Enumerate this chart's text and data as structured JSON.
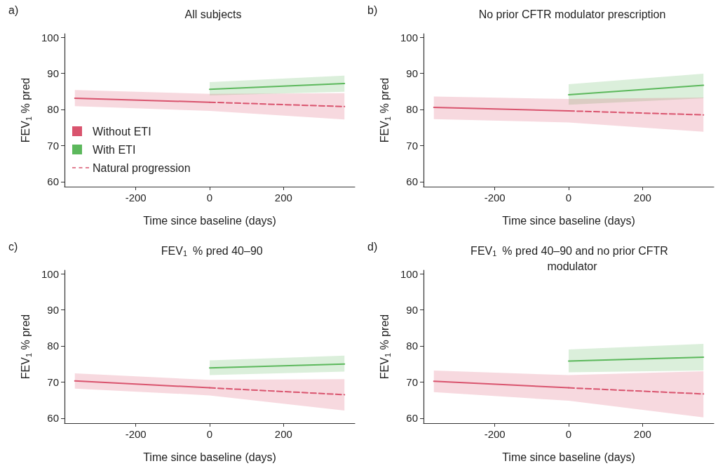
{
  "chart_data": [
    {
      "type": "line",
      "title": "All subjects",
      "annotations": [
        "a)"
      ],
      "xlabel": "Time since baseline (days)",
      "ylabel": "FEV$_{1}$ % pred",
      "xlim": [
        -393,
        393
      ],
      "xticks": [
        -200,
        0,
        200
      ],
      "ylim": [
        58.6,
        101
      ],
      "yticks": [
        60,
        70,
        80,
        90,
        100
      ],
      "grid": false,
      "marker": "none",
      "legend": "bottom left",
      "series": [
        {
          "name": "Without ETI",
          "color": "#d9546e",
          "line_style": "solid",
          "x": [
            -365,
            0
          ],
          "values": [
            83.1,
            82.0
          ],
          "lower": [
            80.9,
            79.6
          ],
          "upper": [
            85.4,
            84.3
          ]
        },
        {
          "name": "With ETI",
          "color": "#5cb85c",
          "line_style": "solid",
          "x": [
            0,
            365
          ],
          "values": [
            85.6,
            87.2
          ],
          "lower": [
            83.9,
            84.9
          ],
          "upper": [
            87.6,
            89.4
          ]
        },
        {
          "name": "Natural progression",
          "color": "#d9546e",
          "line_style": "dashed",
          "x": [
            0,
            365
          ],
          "values": [
            82.0,
            80.8
          ],
          "lower": [
            79.6,
            77.2
          ],
          "upper": [
            84.3,
            84.5
          ]
        }
      ]
    },
    {
      "type": "line",
      "title": "No prior CFTR modulator prescription",
      "annotations": [
        "b)"
      ],
      "xlabel": "Time since baseline (days)",
      "ylabel": "FEV$_{1}$ % pred",
      "xlim": [
        -393,
        393
      ],
      "xticks": [
        -200,
        0,
        200
      ],
      "ylim": [
        58.6,
        101
      ],
      "yticks": [
        60,
        70,
        80,
        90,
        100
      ],
      "grid": false,
      "marker": "none",
      "series": [
        {
          "color": "#d9546e",
          "line_style": "solid",
          "x": [
            -365,
            0
          ],
          "values": [
            80.6,
            79.6
          ],
          "lower": [
            77.3,
            76.4
          ],
          "upper": [
            83.6,
            82.9
          ]
        },
        {
          "color": "#5cb85c",
          "line_style": "solid",
          "x": [
            0,
            365
          ],
          "values": [
            84.1,
            86.7
          ],
          "lower": [
            81.3,
            83.1
          ],
          "upper": [
            87.0,
            89.9
          ]
        },
        {
          "color": "#d9546e",
          "line_style": "dashed",
          "x": [
            0,
            365
          ],
          "values": [
            79.6,
            78.5
          ],
          "lower": [
            76.4,
            73.8
          ],
          "upper": [
            82.9,
            83.3
          ]
        }
      ]
    },
    {
      "type": "line",
      "title": "FEV$_{1}$ % pred 40–90",
      "annotations": [
        "c)"
      ],
      "xlabel": "Time since baseline (days)",
      "ylabel": "FEV$_{1}$ % pred",
      "xlim": [
        -393,
        393
      ],
      "xticks": [
        -200,
        0,
        200
      ],
      "ylim": [
        58.6,
        101
      ],
      "yticks": [
        60,
        70,
        80,
        90,
        100
      ],
      "grid": false,
      "marker": "none",
      "series": [
        {
          "color": "#d9546e",
          "line_style": "solid",
          "x": [
            -365,
            0
          ],
          "values": [
            70.3,
            68.4
          ],
          "lower": [
            68.2,
            66.3
          ],
          "upper": [
            72.4,
            70.6
          ]
        },
        {
          "color": "#5cb85c",
          "line_style": "solid",
          "x": [
            0,
            365
          ],
          "values": [
            73.9,
            75.0
          ],
          "lower": [
            71.9,
            72.9
          ],
          "upper": [
            76.0,
            77.3
          ]
        },
        {
          "color": "#d9546e",
          "line_style": "dashed",
          "x": [
            0,
            365
          ],
          "values": [
            68.4,
            66.5
          ],
          "lower": [
            66.3,
            62.1
          ],
          "upper": [
            70.6,
            70.8
          ]
        }
      ]
    },
    {
      "type": "line",
      "title": "FEV$_{1}$ % pred 40–90 and no prior CFTR modulator",
      "annotations": [
        "d)"
      ],
      "xlabel": "Time since baseline (days)",
      "ylabel": "FEV$_{1}$ % pred",
      "xlim": [
        -393,
        393
      ],
      "xticks": [
        -200,
        0,
        200
      ],
      "ylim": [
        58.6,
        101
      ],
      "yticks": [
        60,
        70,
        80,
        90,
        100
      ],
      "grid": false,
      "marker": "none",
      "series": [
        {
          "color": "#d9546e",
          "line_style": "solid",
          "x": [
            -365,
            0
          ],
          "values": [
            70.2,
            68.4
          ],
          "lower": [
            67.2,
            64.8
          ],
          "upper": [
            73.2,
            71.9
          ]
        },
        {
          "color": "#5cb85c",
          "line_style": "solid",
          "x": [
            0,
            365
          ],
          "values": [
            75.8,
            76.9
          ],
          "lower": [
            72.7,
            73.2
          ],
          "upper": [
            79.0,
            80.6
          ]
        },
        {
          "color": "#d9546e",
          "line_style": "dashed",
          "x": [
            0,
            365
          ],
          "values": [
            68.4,
            66.7
          ],
          "lower": [
            64.8,
            60.2
          ],
          "upper": [
            71.9,
            73.0
          ]
        }
      ]
    }
  ]
}
